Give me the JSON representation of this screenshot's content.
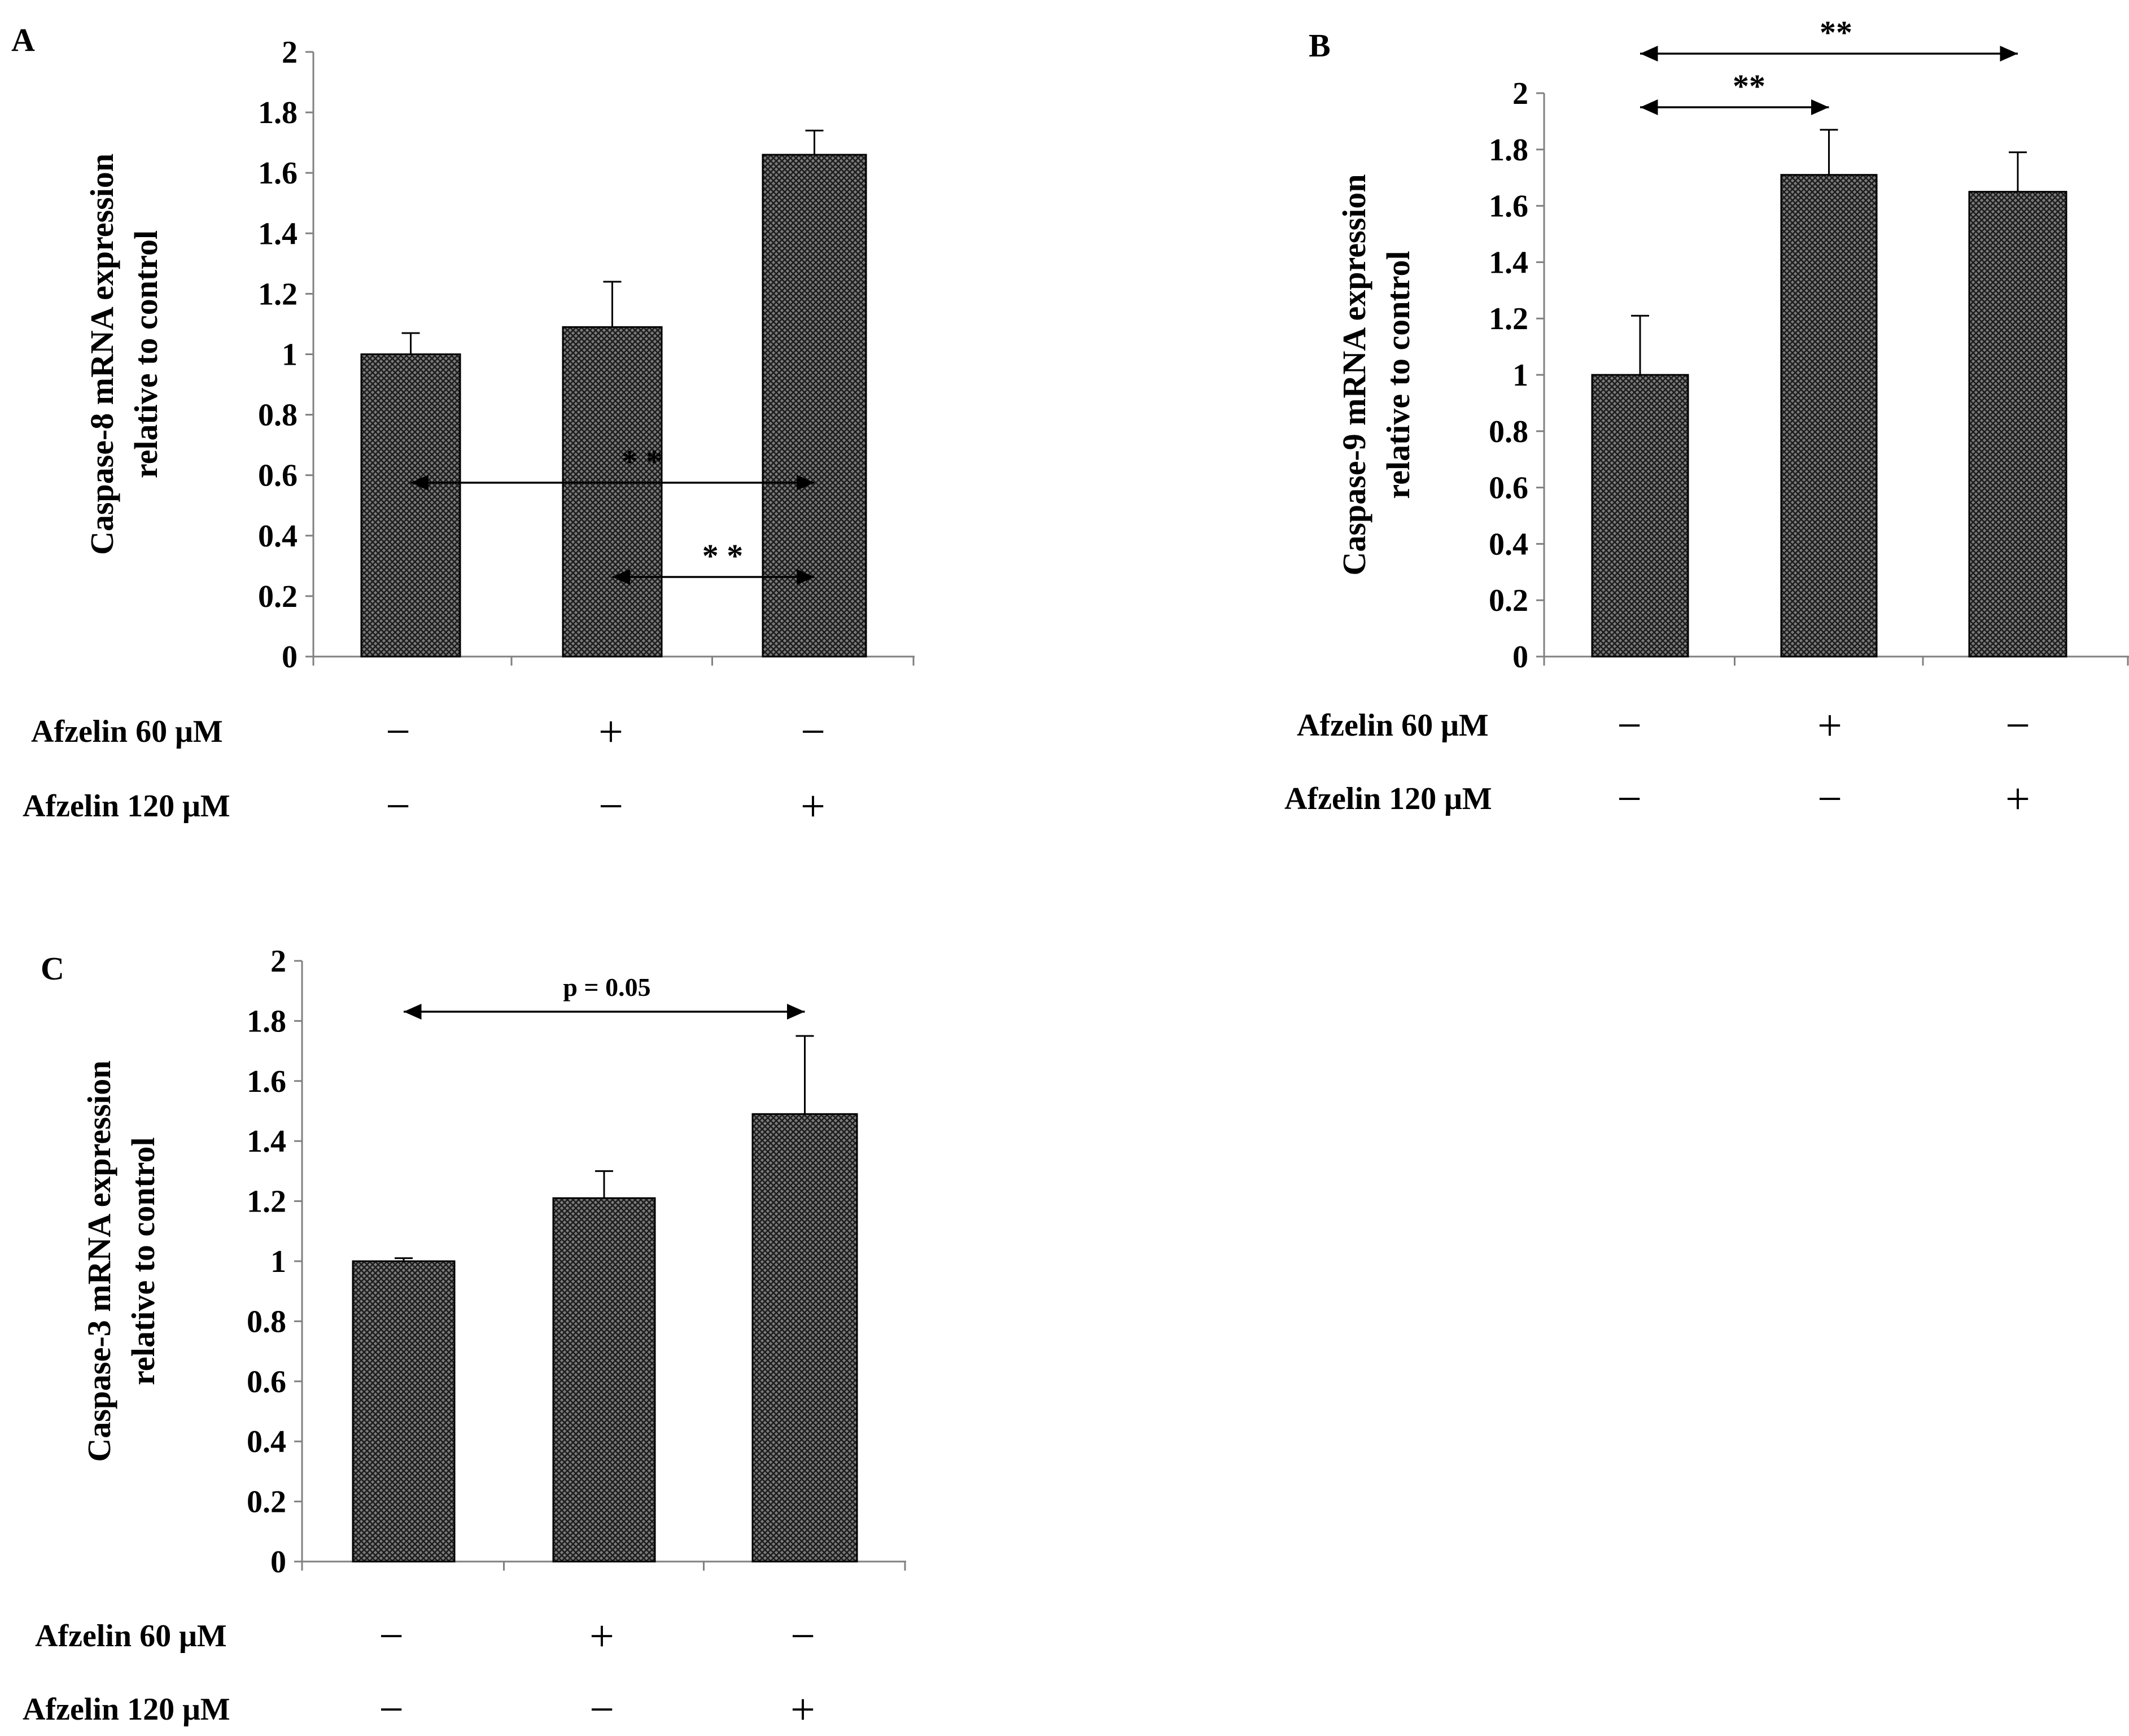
{
  "chart_data": [
    {
      "panel": "A",
      "type": "bar",
      "ylabel_line1": "Caspase-8 mRNA expression",
      "ylabel_line2": "relative to control",
      "ylim": [
        0,
        2
      ],
      "yticks": [
        "0",
        "0.2",
        "0.4",
        "0.6",
        "0.8",
        "1",
        "1.2",
        "1.4",
        "1.6",
        "1.8",
        "2"
      ],
      "values": [
        1.0,
        1.09,
        1.66
      ],
      "errors": [
        0.07,
        0.15,
        0.08
      ],
      "conditions": [
        {
          "label": "Afzelin 60 μM",
          "signs": [
            "−",
            "+",
            "−"
          ]
        },
        {
          "label": "Afzelin 120 μM",
          "signs": [
            "−",
            "−",
            "+"
          ]
        }
      ],
      "comparisons": [
        {
          "from": 1,
          "to": 2,
          "label": "* *"
        },
        {
          "from": 0,
          "to": 2,
          "label": "* *"
        }
      ]
    },
    {
      "panel": "B",
      "type": "bar",
      "ylabel_line1": "Caspase-9 mRNA expression",
      "ylabel_line2": "relative to control",
      "ylim": [
        0,
        2
      ],
      "yticks": [
        "0",
        "0.2",
        "0.4",
        "0.6",
        "0.8",
        "1",
        "1.2",
        "1.4",
        "1.6",
        "1.8",
        "2"
      ],
      "values": [
        1.0,
        1.71,
        1.65
      ],
      "errors": [
        0.21,
        0.16,
        0.14
      ],
      "conditions": [
        {
          "label": "Afzelin 60 μM",
          "signs": [
            "−",
            "+",
            "−"
          ]
        },
        {
          "label": "Afzelin 120 μM",
          "signs": [
            "−",
            "−",
            "+"
          ]
        }
      ],
      "comparisons": [
        {
          "from": 0,
          "to": 2,
          "label": "**"
        },
        {
          "from": 0,
          "to": 1,
          "label": "**"
        }
      ]
    },
    {
      "panel": "C",
      "type": "bar",
      "ylabel_line1": "Caspase-3 mRNA expression",
      "ylabel_line2": "relative to control",
      "ylim": [
        0,
        2
      ],
      "yticks": [
        "0",
        "0.2",
        "0.4",
        "0.6",
        "0.8",
        "1",
        "1.2",
        "1.4",
        "1.6",
        "1.8",
        "2"
      ],
      "values": [
        1.0,
        1.21,
        1.49
      ],
      "errors": [
        0.01,
        0.09,
        0.26
      ],
      "conditions": [
        {
          "label": "Afzelin 60 μM",
          "signs": [
            "−",
            "+",
            "−"
          ]
        },
        {
          "label": "Afzelin 120 μM",
          "signs": [
            "−",
            "−",
            "+"
          ]
        }
      ],
      "comparisons": [
        {
          "from": 0,
          "to": 2,
          "label": "p = 0.05"
        }
      ]
    }
  ]
}
